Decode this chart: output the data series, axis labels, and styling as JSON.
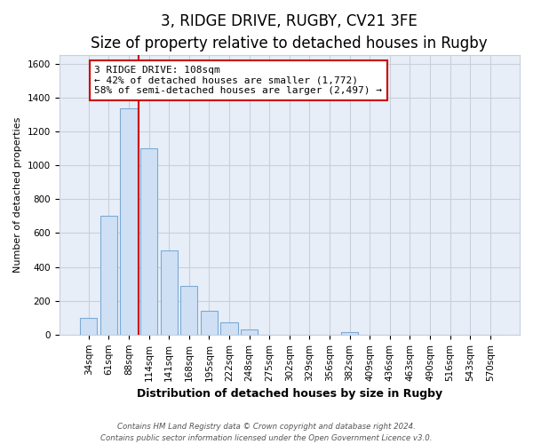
{
  "title": "3, RIDGE DRIVE, RUGBY, CV21 3FE",
  "subtitle": "Size of property relative to detached houses in Rugby",
  "xlabel": "Distribution of detached houses by size in Rugby",
  "ylabel": "Number of detached properties",
  "bar_labels": [
    "34sqm",
    "61sqm",
    "88sqm",
    "114sqm",
    "141sqm",
    "168sqm",
    "195sqm",
    "222sqm",
    "248sqm",
    "275sqm",
    "302sqm",
    "329sqm",
    "356sqm",
    "382sqm",
    "409sqm",
    "436sqm",
    "463sqm",
    "490sqm",
    "516sqm",
    "543sqm",
    "570sqm"
  ],
  "bar_values": [
    100,
    700,
    1335,
    1100,
    500,
    285,
    140,
    75,
    30,
    0,
    0,
    0,
    0,
    15,
    0,
    0,
    0,
    0,
    0,
    0,
    0
  ],
  "bar_color": "#cfe0f5",
  "bar_edgecolor": "#7baad4",
  "vline_index": 2,
  "vline_color": "#cc0000",
  "ylim": [
    0,
    1650
  ],
  "yticks": [
    0,
    200,
    400,
    600,
    800,
    1000,
    1200,
    1400,
    1600
  ],
  "annotation_title": "3 RIDGE DRIVE: 108sqm",
  "annotation_line1": "← 42% of detached houses are smaller (1,772)",
  "annotation_line2": "58% of semi-detached houses are larger (2,497) →",
  "annotation_box_facecolor": "#ffffff",
  "annotation_box_edgecolor": "#cc0000",
  "footer1": "Contains HM Land Registry data © Crown copyright and database right 2024.",
  "footer2": "Contains public sector information licensed under the Open Government Licence v3.0.",
  "fig_facecolor": "#ffffff",
  "plot_facecolor": "#e8eef8",
  "grid_color": "#c8d0dc",
  "title_fontsize": 12,
  "subtitle_fontsize": 10,
  "tick_fontsize": 7.5,
  "ylabel_fontsize": 8,
  "xlabel_fontsize": 9,
  "annotation_fontsize": 8
}
